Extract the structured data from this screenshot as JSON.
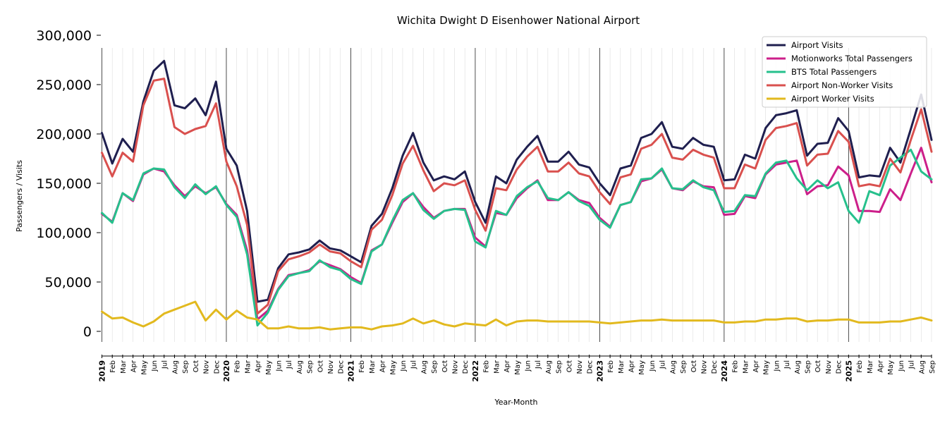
{
  "chart_data": {
    "type": "line",
    "title": "Wichita Dwight D Eisenhower National Airport",
    "xlabel": "Year-Month",
    "ylabel": "Passengers / Visits",
    "ylim": [
      -10000,
      300000
    ],
    "yticks": [
      0,
      50000,
      100000,
      150000,
      200000,
      250000,
      300000
    ],
    "ytick_labels": [
      "0",
      "50,000",
      "100,000",
      "150,000",
      "200,000",
      "250,000",
      "300,000"
    ],
    "grid": "vertical-monthly",
    "legend_position": "top-right",
    "month_labels": [
      "Feb",
      "Mar",
      "Apr",
      "May",
      "Jun",
      "Jul",
      "Aug",
      "Sep",
      "Oct",
      "Nov",
      "Dec"
    ],
    "years": [
      "2019",
      "2020",
      "2021",
      "2022",
      "2023",
      "2024",
      "2025"
    ],
    "x_start": "2019-01",
    "x_end": "2025-09",
    "series": [
      {
        "name": "Airport Visits",
        "color": "#1f1f4f",
        "values": [
          201000,
          170000,
          195000,
          182000,
          233000,
          264000,
          274000,
          229000,
          226000,
          236000,
          219000,
          253000,
          185000,
          168000,
          122000,
          30000,
          32000,
          64000,
          78000,
          80000,
          83000,
          92000,
          84000,
          82000,
          76000,
          70000,
          107000,
          119000,
          145000,
          178000,
          201000,
          171000,
          153000,
          157000,
          154000,
          162000,
          131000,
          110000,
          157000,
          150000,
          174000,
          187000,
          198000,
          172000,
          172000,
          182000,
          169000,
          166000,
          150000,
          138000,
          165000,
          168000,
          196000,
          200000,
          212000,
          187000,
          185000,
          196000,
          189000,
          187000,
          153000,
          154000,
          179000,
          175000,
          206000,
          219000,
          221000,
          224000,
          178000,
          190000,
          191000,
          216000,
          203000,
          156000,
          158000,
          157000,
          186000,
          171000,
          205000,
          240000,
          194000
        ]
      },
      {
        "name": "Motionworks Total Passengers",
        "color": "#cc1f8a",
        "values": [
          119000,
          111000,
          140000,
          132000,
          159000,
          165000,
          162000,
          148000,
          137000,
          147000,
          140000,
          146000,
          129000,
          118000,
          82000,
          12000,
          21000,
          43000,
          57000,
          59000,
          62000,
          71000,
          67000,
          63000,
          55000,
          49000,
          82000,
          88000,
          110000,
          131000,
          140000,
          126000,
          115000,
          122000,
          124000,
          124000,
          95000,
          86000,
          120000,
          118000,
          135000,
          145000,
          153000,
          133000,
          133000,
          141000,
          133000,
          130000,
          115000,
          106000,
          128000,
          131000,
          152000,
          155000,
          164000,
          145000,
          143000,
          152000,
          147000,
          146000,
          118000,
          119000,
          137000,
          135000,
          159000,
          169000,
          171000,
          173000,
          139000,
          147000,
          148000,
          167000,
          158000,
          122000,
          122000,
          121000,
          144000,
          133000,
          160000,
          186000,
          151000
        ]
      },
      {
        "name": "BTS Total Passengers",
        "color": "#26c08c",
        "values": [
          120000,
          110000,
          140000,
          133000,
          160000,
          165000,
          164000,
          146000,
          135000,
          149000,
          139000,
          147000,
          128000,
          116000,
          78000,
          6000,
          19000,
          42000,
          56000,
          59000,
          61000,
          72000,
          65000,
          62000,
          53000,
          48000,
          81000,
          88000,
          112000,
          133000,
          140000,
          123000,
          114000,
          122000,
          124000,
          123000,
          91000,
          85000,
          122000,
          118000,
          137000,
          146000,
          152000,
          135000,
          133000,
          141000,
          132000,
          127000,
          113000,
          105000,
          128000,
          131000,
          154000,
          155000,
          165000,
          145000,
          144000,
          153000,
          146000,
          143000,
          121000,
          122000,
          138000,
          137000,
          160000,
          171000,
          173000,
          155000,
          143000,
          153000,
          145000,
          151000,
          122000,
          110000,
          142000,
          138000,
          168000,
          176000,
          184000,
          162000,
          154000
        ]
      },
      {
        "name": "Airport Non-Worker Visits",
        "color": "#d9504e",
        "values": [
          181000,
          157000,
          181000,
          172000,
          229000,
          254000,
          256000,
          207000,
          200000,
          205000,
          208000,
          231000,
          172000,
          147000,
          108000,
          18000,
          27000,
          61000,
          73000,
          76000,
          80000,
          88000,
          81000,
          79000,
          71000,
          65000,
          103000,
          113000,
          138000,
          170000,
          188000,
          163000,
          142000,
          150000,
          148000,
          153000,
          123000,
          102000,
          145000,
          143000,
          164000,
          177000,
          187000,
          162000,
          162000,
          171000,
          160000,
          157000,
          141000,
          129000,
          156000,
          159000,
          185000,
          189000,
          200000,
          176000,
          174000,
          184000,
          179000,
          176000,
          145000,
          145000,
          169000,
          165000,
          194000,
          206000,
          208000,
          211000,
          168000,
          179000,
          180000,
          203000,
          192000,
          147000,
          149000,
          147000,
          175000,
          161000,
          194000,
          225000,
          182000
        ]
      },
      {
        "name": "Airport Worker Visits",
        "color": "#e2b91e",
        "values": [
          20000,
          13000,
          14000,
          9000,
          5000,
          10000,
          18000,
          22000,
          26000,
          30000,
          11000,
          22000,
          12000,
          21000,
          14000,
          12000,
          3000,
          3000,
          5000,
          3000,
          3000,
          4000,
          2000,
          3000,
          4000,
          4000,
          2000,
          5000,
          6000,
          8000,
          13000,
          8000,
          11000,
          7000,
          5000,
          8000,
          7000,
          6000,
          12000,
          6000,
          10000,
          11000,
          11000,
          10000,
          10000,
          10000,
          10000,
          10000,
          9000,
          8000,
          9000,
          10000,
          11000,
          11000,
          12000,
          11000,
          11000,
          11000,
          11000,
          11000,
          9000,
          9000,
          10000,
          10000,
          12000,
          12000,
          13000,
          13000,
          10000,
          11000,
          11000,
          12000,
          12000,
          9000,
          9000,
          9000,
          10000,
          10000,
          12000,
          14000,
          11000
        ]
      }
    ]
  }
}
